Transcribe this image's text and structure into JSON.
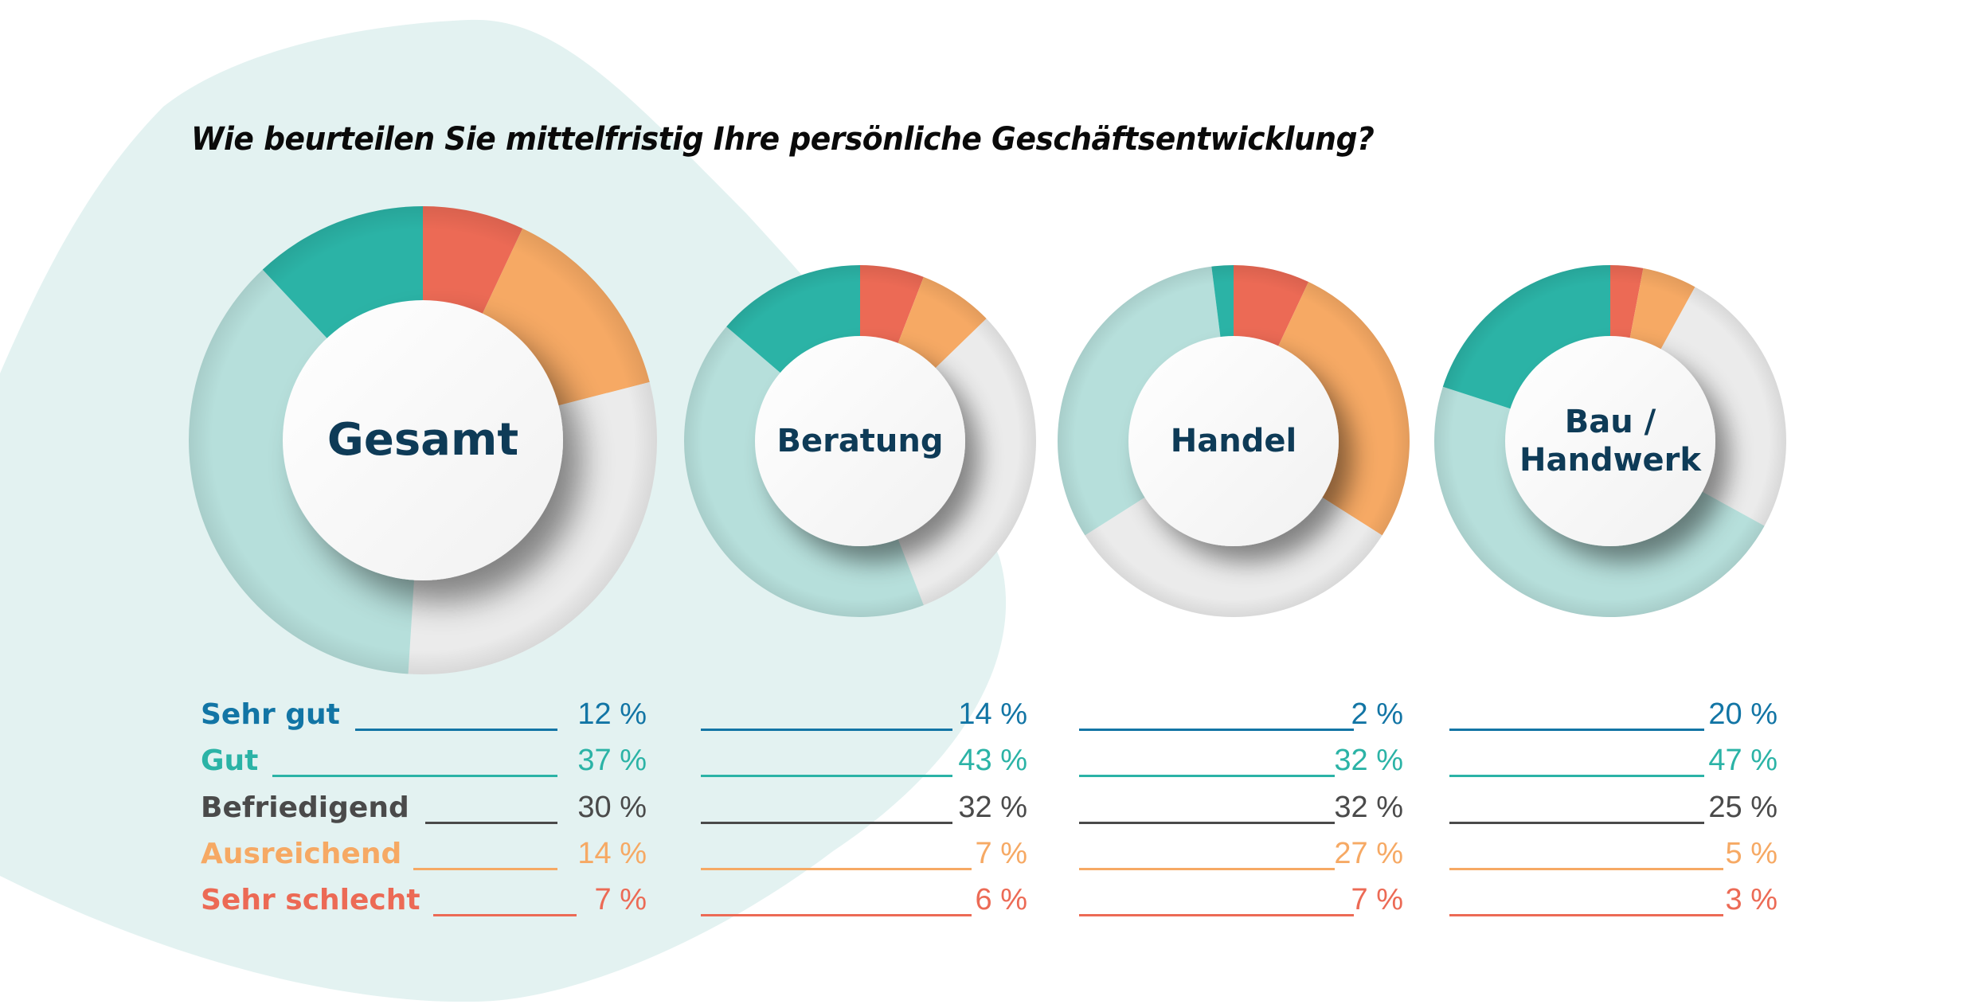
{
  "title": "Wie beurteilen Sie mittelfristig Ihre persönliche Geschäftsentwicklung?",
  "colors": {
    "background_blob": "#E3F2F1",
    "center_text": "#0E3B57",
    "segments": {
      "Sehr gut": "#2BB3A6",
      "Gut": "#B6DFDB",
      "Befriedigend": "#EBEBEB",
      "Ausreichend": "#F6A964",
      "Sehr schlecht": "#EC6A55"
    },
    "legend": {
      "Sehr gut": "#1275A5",
      "Gut": "#2BB3A6",
      "Befriedigend": "#4A4A4A",
      "Ausreichend": "#F6A964",
      "Sehr schlecht": "#EC6A55"
    }
  },
  "legend": {
    "labels": [
      "Sehr gut",
      "Gut",
      "Befriedigend",
      "Ausreichend",
      "Sehr schlecht"
    ]
  },
  "groups": [
    {
      "name": "Gesamt",
      "label_lines": [
        "Gesamt"
      ],
      "values": [
        12,
        37,
        30,
        14,
        7
      ],
      "value_labels": [
        "12 %",
        "37 %",
        "30 %",
        "14 %",
        "7 %"
      ]
    },
    {
      "name": "Beratung",
      "label_lines": [
        "Beratung"
      ],
      "values": [
        14,
        43,
        32,
        7,
        6
      ],
      "value_labels": [
        "14 %",
        "43 %",
        "32 %",
        "7 %",
        "6 %"
      ]
    },
    {
      "name": "Handel",
      "label_lines": [
        "Handel"
      ],
      "values": [
        2,
        32,
        32,
        27,
        7
      ],
      "value_labels": [
        "2 %",
        "32 %",
        "32 %",
        "27 %",
        "7 %"
      ]
    },
    {
      "name": "Bau / Handwerk",
      "label_lines": [
        "Bau /",
        "Handwerk"
      ],
      "values": [
        20,
        47,
        25,
        5,
        3
      ],
      "value_labels": [
        "20 %",
        "47 %",
        "25 %",
        "5 %",
        "3 %"
      ]
    }
  ],
  "chart_data": {
    "type": "pie",
    "subtype": "donut",
    "title": "Wie beurteilen Sie mittelfristig Ihre persönliche Geschäftsentwicklung?",
    "categories": [
      "Sehr gut",
      "Gut",
      "Befriedigend",
      "Ausreichend",
      "Sehr schlecht"
    ],
    "series": [
      {
        "name": "Gesamt",
        "values": [
          12,
          37,
          30,
          14,
          7
        ]
      },
      {
        "name": "Beratung",
        "values": [
          14,
          43,
          32,
          7,
          6
        ]
      },
      {
        "name": "Handel",
        "values": [
          2,
          32,
          32,
          27,
          7
        ]
      },
      {
        "name": "Bau / Handwerk",
        "values": [
          20,
          47,
          25,
          5,
          3
        ]
      }
    ],
    "unit": "%",
    "segment_order_clockwise_from_top": [
      "Sehr schlecht",
      "Ausreichend",
      "Befriedigend",
      "Gut",
      "Sehr gut"
    ],
    "legend_position": "below"
  }
}
